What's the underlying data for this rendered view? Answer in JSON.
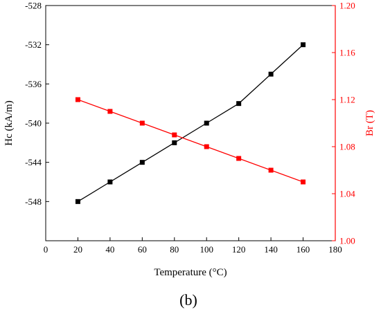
{
  "chart_data": {
    "type": "line",
    "caption": "(b)",
    "xlabel": "Temperature (°C)",
    "xlim": [
      0,
      180
    ],
    "xticks": [
      "0",
      "20",
      "40",
      "60",
      "80",
      "100",
      "120",
      "140",
      "160",
      "180"
    ],
    "x": [
      20,
      40,
      60,
      80,
      100,
      120,
      140,
      160
    ],
    "y_left": {
      "label": "Hc (kA/m)",
      "lim": [
        -552,
        -528
      ],
      "ticks": [
        "-528",
        "-532",
        "-536",
        "-540",
        "-544",
        "-548"
      ],
      "color": "#000000"
    },
    "y_right": {
      "label": "Br (T)",
      "lim": [
        1.0,
        1.2
      ],
      "ticks": [
        "1.20",
        "1.16",
        "1.12",
        "1.08",
        "1.04",
        "1.00"
      ],
      "color": "#ff0000"
    },
    "series": [
      {
        "axis": "left",
        "marker": "square",
        "color": "#000000",
        "values": [
          -548,
          -546,
          -544,
          -542,
          -540,
          -538,
          -535,
          -532
        ]
      },
      {
        "axis": "right",
        "marker": "square",
        "color": "#ff0000",
        "values": [
          1.12,
          1.11,
          1.1,
          1.09,
          1.08,
          1.07,
          1.06,
          1.05
        ]
      }
    ],
    "grid": false,
    "legend": "none"
  }
}
